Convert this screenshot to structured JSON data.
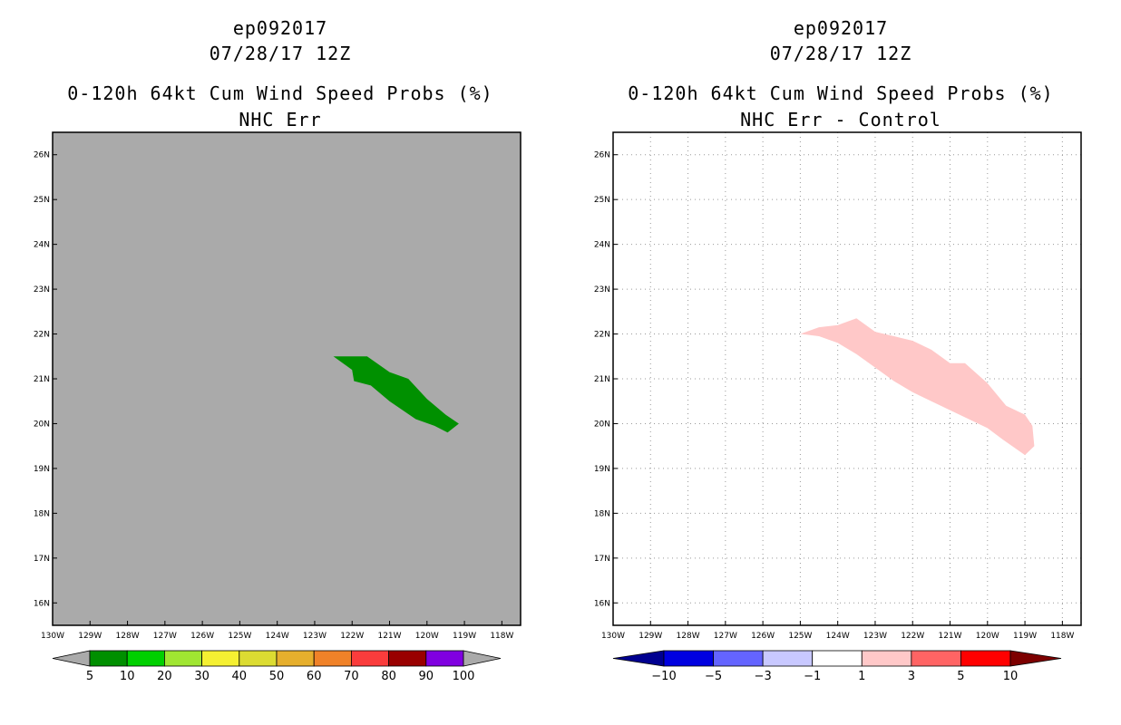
{
  "chart_data": [
    {
      "type": "heatmap",
      "storm_id": "ep092017",
      "date": "07/28/17 12Z",
      "title": "0-120h 64kt Cum Wind Speed Probs (%)",
      "subtitle": "NHC Err",
      "background": "#aaaaaa",
      "grid": false,
      "xlim": [
        -130,
        -117.5
      ],
      "ylim": [
        15.5,
        26.5
      ],
      "x_ticks": [
        "130W",
        "129W",
        "128W",
        "127W",
        "126W",
        "125W",
        "124W",
        "123W",
        "122W",
        "121W",
        "120W",
        "119W",
        "118W"
      ],
      "y_ticks": [
        "16N",
        "17N",
        "18N",
        "19N",
        "20N",
        "21N",
        "22N",
        "23N",
        "24N",
        "25N",
        "26N"
      ],
      "colorbar": {
        "labels": [
          "5",
          "10",
          "20",
          "30",
          "40",
          "50",
          "60",
          "70",
          "80",
          "90",
          "100"
        ],
        "colors": [
          "#008f00",
          "#00d000",
          "#a0e632",
          "#f5f032",
          "#dcdc32",
          "#e6af2d",
          "#f08228",
          "#fa3c3c",
          "#990000",
          "#8000e0"
        ],
        "end_colors": [
          "#aaaaaa",
          "#aaaaaa"
        ]
      },
      "shaded_regions": [
        {
          "value_range": "5-10",
          "color": "#009000",
          "polygon_lon_lat": [
            [
              -122.5,
              21.5
            ],
            [
              -121.6,
              21.5
            ],
            [
              -121.0,
              21.15
            ],
            [
              -120.5,
              21.0
            ],
            [
              -120.0,
              20.55
            ],
            [
              -119.5,
              20.2
            ],
            [
              -119.15,
              20.0
            ],
            [
              -119.45,
              19.8
            ],
            [
              -119.8,
              19.95
            ],
            [
              -120.3,
              20.1
            ],
            [
              -121.0,
              20.5
            ],
            [
              -121.5,
              20.85
            ],
            [
              -121.95,
              20.95
            ],
            [
              -122.0,
              21.2
            ]
          ]
        }
      ]
    },
    {
      "type": "heatmap",
      "storm_id": "ep092017",
      "date": "07/28/17 12Z",
      "title": "0-120h 64kt Cum Wind Speed Probs (%)",
      "subtitle": "NHC Err - Control",
      "background": "#ffffff",
      "grid": true,
      "xlim": [
        -130,
        -117.5
      ],
      "ylim": [
        15.5,
        26.5
      ],
      "x_ticks": [
        "130W",
        "129W",
        "128W",
        "127W",
        "126W",
        "125W",
        "124W",
        "123W",
        "122W",
        "121W",
        "120W",
        "119W",
        "118W"
      ],
      "y_ticks": [
        "16N",
        "17N",
        "18N",
        "19N",
        "20N",
        "21N",
        "22N",
        "23N",
        "24N",
        "25N",
        "26N"
      ],
      "colorbar": {
        "labels": [
          "−10",
          "−5",
          "−3",
          "−1",
          "1",
          "3",
          "5",
          "10"
        ],
        "colors": [
          "#0000e0",
          "#6464ff",
          "#c8c8ff",
          "#ffffff",
          "#ffc8c8",
          "#ff6464",
          "#ff0000"
        ],
        "end_colors": [
          "#000090",
          "#7d0000"
        ]
      },
      "shaded_regions": [
        {
          "value_range": "1-3",
          "color": "#ffc8c8",
          "polygon_lon_lat": [
            [
              -125.0,
              22.0
            ],
            [
              -124.5,
              22.15
            ],
            [
              -124.0,
              22.2
            ],
            [
              -123.5,
              22.35
            ],
            [
              -123.0,
              22.05
            ],
            [
              -122.5,
              21.95
            ],
            [
              -122.0,
              21.85
            ],
            [
              -121.5,
              21.65
            ],
            [
              -121.0,
              21.35
            ],
            [
              -120.6,
              21.35
            ],
            [
              -120.0,
              20.9
            ],
            [
              -119.5,
              20.4
            ],
            [
              -119.0,
              20.2
            ],
            [
              -118.8,
              19.95
            ],
            [
              -118.75,
              19.5
            ],
            [
              -119.0,
              19.3
            ],
            [
              -119.6,
              19.65
            ],
            [
              -120.0,
              19.9
            ],
            [
              -120.5,
              20.1
            ],
            [
              -121.0,
              20.3
            ],
            [
              -121.5,
              20.5
            ],
            [
              -122.0,
              20.7
            ],
            [
              -122.5,
              20.95
            ],
            [
              -123.0,
              21.25
            ],
            [
              -123.5,
              21.55
            ],
            [
              -124.0,
              21.8
            ],
            [
              -124.5,
              21.95
            ]
          ]
        }
      ]
    }
  ]
}
